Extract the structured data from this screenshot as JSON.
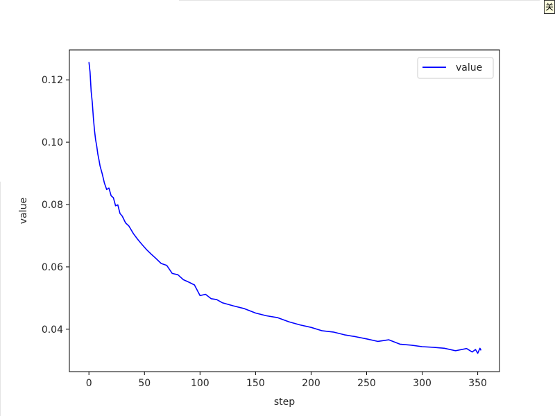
{
  "window": {
    "close_label": "关"
  },
  "chart_data": {
    "type": "line",
    "title": "",
    "xlabel": "step",
    "ylabel": "value",
    "xlim": [
      -17.6,
      369.6
    ],
    "ylim": [
      0.0264,
      0.1296
    ],
    "xticks": [
      0,
      50,
      100,
      150,
      200,
      250,
      300,
      350
    ],
    "xtick_labels": [
      "0",
      "50",
      "100",
      "150",
      "200",
      "250",
      "300",
      "350"
    ],
    "yticks": [
      0.04,
      0.06,
      0.08,
      0.1,
      0.12
    ],
    "ytick_labels": [
      "0.04",
      "0.06",
      "0.08",
      "0.10",
      "0.12"
    ],
    "grid": false,
    "legend": {
      "position": "top-right",
      "entries": [
        "value"
      ]
    },
    "series": [
      {
        "name": "value",
        "color": "#0000ff",
        "x": [
          0,
          1,
          2,
          3,
          4,
          5,
          6,
          7,
          8,
          9,
          10,
          12,
          14,
          16,
          18,
          20,
          22,
          24,
          26,
          28,
          30,
          33,
          36,
          40,
          44,
          48,
          52,
          56,
          60,
          65,
          70,
          75,
          80,
          85,
          90,
          95,
          100,
          105,
          110,
          115,
          120,
          130,
          140,
          150,
          160,
          170,
          180,
          190,
          200,
          210,
          220,
          230,
          240,
          250,
          260,
          270,
          280,
          290,
          300,
          310,
          320,
          330,
          340,
          345,
          348,
          350,
          352,
          353
        ],
        "y": [
          0.1257,
          0.1225,
          0.1163,
          0.1128,
          0.1078,
          0.1038,
          0.1008,
          0.0988,
          0.0962,
          0.0944,
          0.0924,
          0.0898,
          0.0868,
          0.0848,
          0.0853,
          0.0828,
          0.0822,
          0.0796,
          0.0799,
          0.0771,
          0.0763,
          0.0741,
          0.0731,
          0.0707,
          0.0688,
          0.0671,
          0.0655,
          0.0641,
          0.0628,
          0.0611,
          0.0605,
          0.0579,
          0.0575,
          0.0559,
          0.0551,
          0.0542,
          0.0508,
          0.0512,
          0.0498,
          0.0495,
          0.0485,
          0.0475,
          0.0466,
          0.0452,
          0.0443,
          0.0437,
          0.0424,
          0.0414,
          0.0406,
          0.0395,
          0.0391,
          0.0382,
          0.0376,
          0.0369,
          0.0361,
          0.0366,
          0.0352,
          0.0349,
          0.0344,
          0.0342,
          0.0339,
          0.0331,
          0.0338,
          0.0327,
          0.0335,
          0.0323,
          0.0339,
          0.0332
        ]
      }
    ]
  }
}
